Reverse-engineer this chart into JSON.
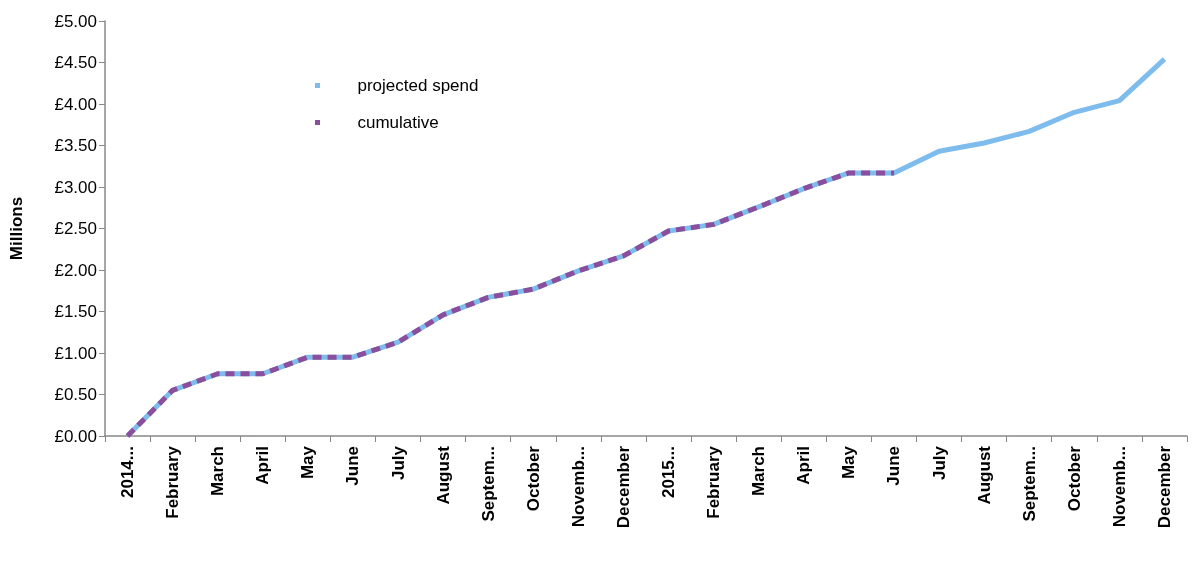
{
  "chart_data": {
    "type": "line",
    "ylabel": "Millions",
    "categories": [
      "2014...",
      "February",
      "March",
      "April",
      "May",
      "June",
      "July",
      "August",
      "Septem...",
      "October",
      "Novemb...",
      "December",
      "2015...",
      "February",
      "March",
      "April",
      "May",
      "June",
      "July",
      "August",
      "Septem...",
      "October",
      "Novemb...",
      "December"
    ],
    "series": [
      {
        "name": "projected spend",
        "color": "#7dbcec",
        "line_style": "solid",
        "values": [
          0,
          0.55,
          0.75,
          0.75,
          0.95,
          0.95,
          1.13,
          1.46,
          1.67,
          1.77,
          1.99,
          2.17,
          2.47,
          2.55,
          2.76,
          2.98,
          3.17,
          3.17,
          3.43,
          3.53,
          3.67,
          3.9,
          4.04,
          4.54
        ]
      },
      {
        "name": "cumulative",
        "color": "#8b4e9c",
        "line_style": "dashed",
        "values": [
          0,
          0.55,
          0.75,
          0.75,
          0.95,
          0.95,
          1.13,
          1.46,
          1.67,
          1.77,
          1.99,
          2.17,
          2.47,
          2.55,
          2.76,
          2.98,
          3.17,
          3.17,
          null,
          null,
          null,
          null,
          null,
          null
        ]
      }
    ],
    "ylim": [
      0,
      5
    ],
    "yticks": [
      {
        "value": 0,
        "label": "£0.00"
      },
      {
        "value": 0.5,
        "label": "£0.50"
      },
      {
        "value": 1,
        "label": "£1.00"
      },
      {
        "value": 1.5,
        "label": "£1.50"
      },
      {
        "value": 2,
        "label": "£2.00"
      },
      {
        "value": 2.5,
        "label": "£2.50"
      },
      {
        "value": 3,
        "label": "£3.00"
      },
      {
        "value": 3.5,
        "label": "£3.50"
      },
      {
        "value": 4,
        "label": "£4.00"
      },
      {
        "value": 4.5,
        "label": "£4.50"
      },
      {
        "value": 5,
        "label": "£5.00"
      }
    ],
    "grid": false,
    "legend": "top left",
    "marker": "none"
  }
}
